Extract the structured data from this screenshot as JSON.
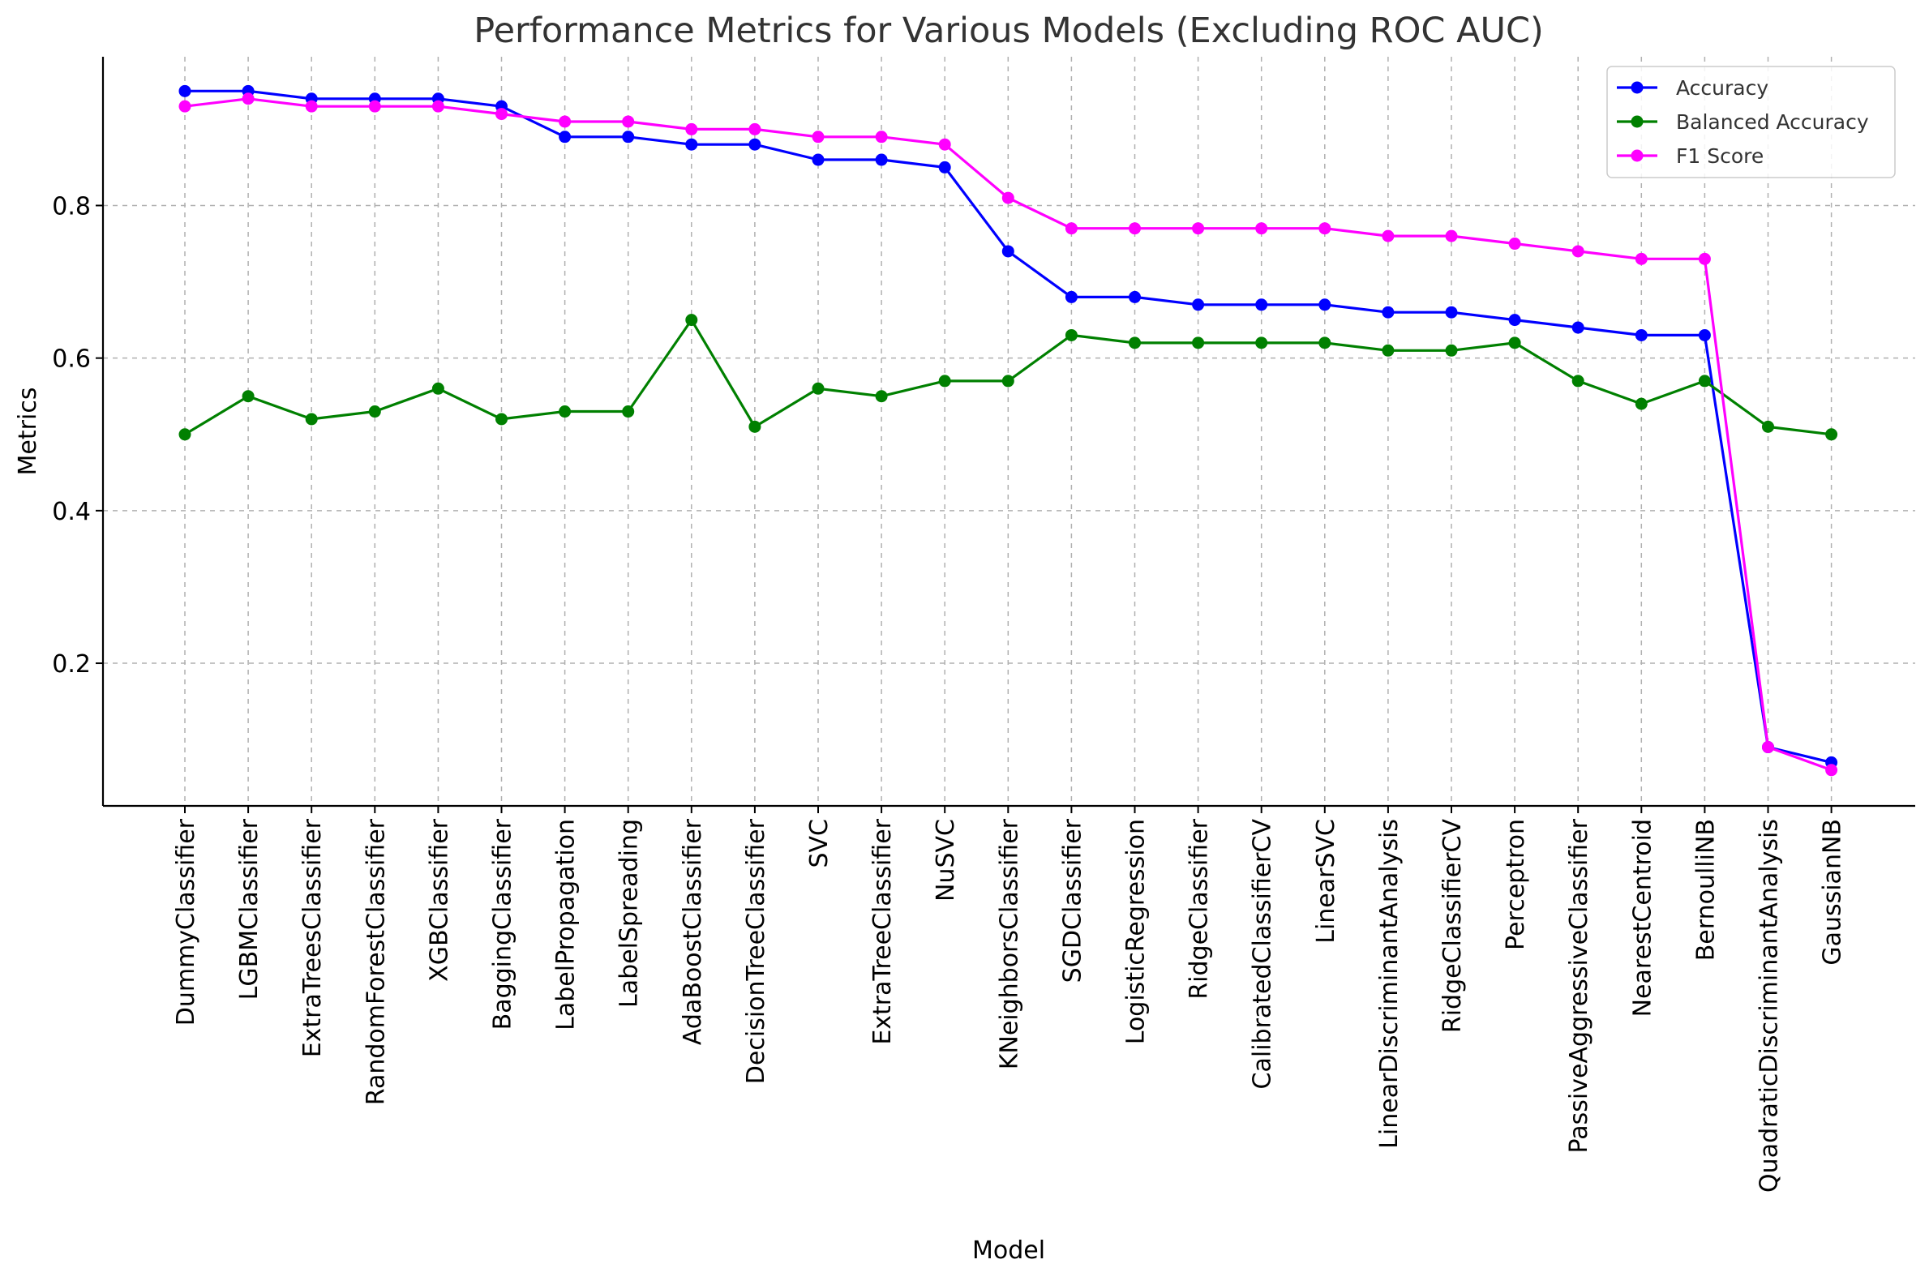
{
  "chart_data": {
    "type": "line",
    "title": "Performance Metrics for Various Models (Excluding ROC AUC)",
    "xlabel": "Model",
    "ylabel": "Metrics",
    "ylim": [
      0.013,
      0.995
    ],
    "yticks": [
      0.2,
      0.4,
      0.6,
      0.8
    ],
    "ytick_labels": [
      "0.2",
      "0.4",
      "0.6",
      "0.8"
    ],
    "grid": true,
    "legend_position": "top-right",
    "categories": [
      "DummyClassifier",
      "LGBMClassifier",
      "ExtraTreesClassifier",
      "RandomForestClassifier",
      "XGBClassifier",
      "BaggingClassifier",
      "LabelPropagation",
      "LabelSpreading",
      "AdaBoostClassifier",
      "DecisionTreeClassifier",
      "SVC",
      "ExtraTreeClassifier",
      "NuSVC",
      "KNeighborsClassifier",
      "SGDClassifier",
      "LogisticRegression",
      "RidgeClassifier",
      "CalibratedClassifierCV",
      "LinearSVC",
      "LinearDiscriminantAnalysis",
      "RidgeClassifierCV",
      "Perceptron",
      "PassiveAggressiveClassifier",
      "NearestCentroid",
      "BernoulliNB",
      "QuadraticDiscriminantAnalysis",
      "GaussianNB"
    ],
    "series": [
      {
        "name": "Accuracy",
        "color": "#0000ff",
        "values": [
          0.95,
          0.95,
          0.94,
          0.94,
          0.94,
          0.93,
          0.89,
          0.89,
          0.88,
          0.88,
          0.86,
          0.86,
          0.85,
          0.74,
          0.68,
          0.68,
          0.67,
          0.67,
          0.67,
          0.66,
          0.66,
          0.65,
          0.64,
          0.63,
          0.63,
          0.09,
          0.07
        ]
      },
      {
        "name": "Balanced Accuracy",
        "color": "#008000",
        "values": [
          0.5,
          0.55,
          0.52,
          0.53,
          0.56,
          0.52,
          0.53,
          0.53,
          0.65,
          0.51,
          0.56,
          0.55,
          0.57,
          0.57,
          0.63,
          0.62,
          0.62,
          0.62,
          0.62,
          0.61,
          0.61,
          0.62,
          0.57,
          0.54,
          0.57,
          0.51,
          0.5
        ]
      },
      {
        "name": "F1 Score",
        "color": "#ff00ff",
        "values": [
          0.93,
          0.94,
          0.93,
          0.93,
          0.93,
          0.92,
          0.91,
          0.91,
          0.9,
          0.9,
          0.89,
          0.89,
          0.88,
          0.81,
          0.77,
          0.77,
          0.77,
          0.77,
          0.77,
          0.76,
          0.76,
          0.75,
          0.74,
          0.73,
          0.73,
          0.09,
          0.06
        ]
      }
    ]
  }
}
